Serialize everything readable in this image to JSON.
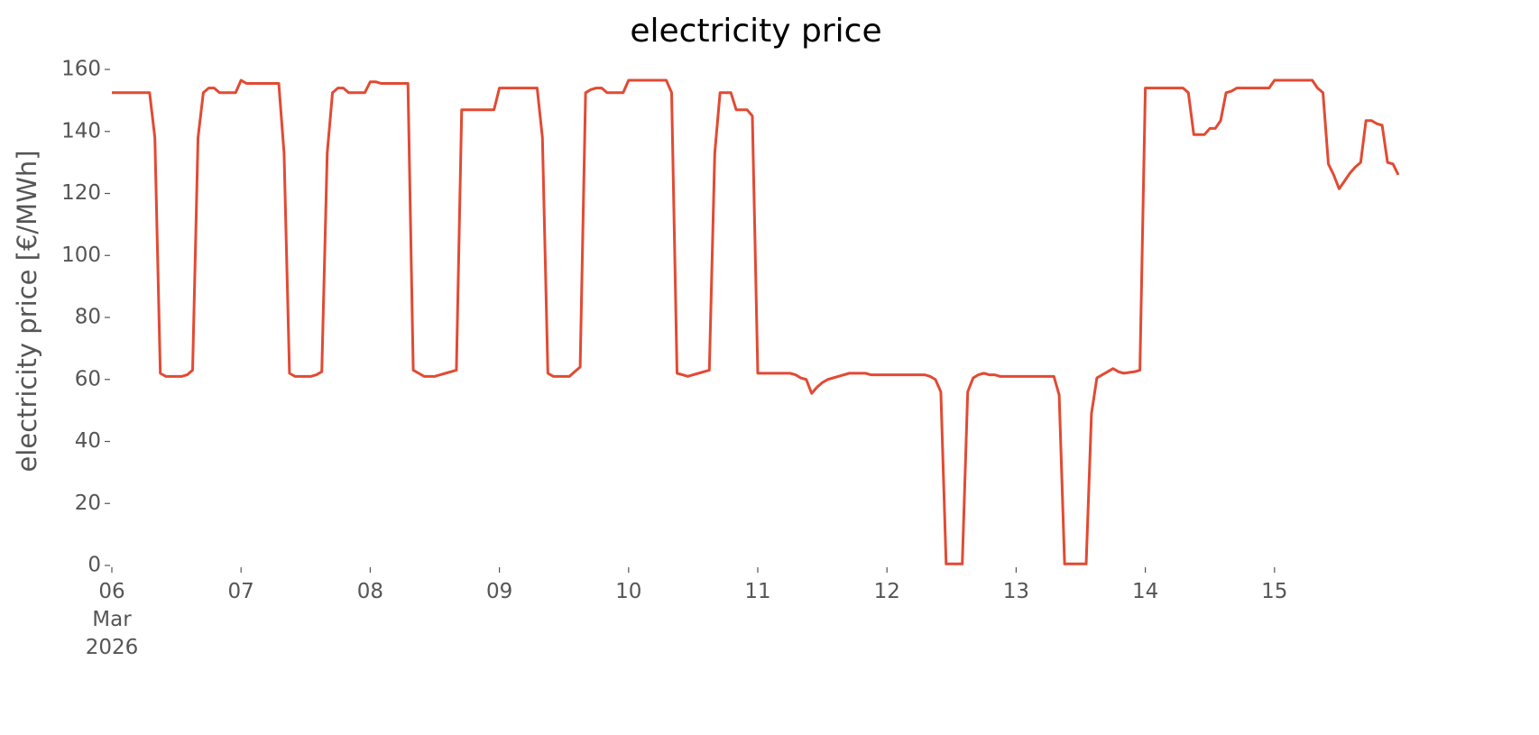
{
  "chart_data": {
    "type": "line",
    "title": "electricity price",
    "y_label": "electricity price [€/MWh]",
    "color": "#e24a33",
    "x": [
      0,
      0.292,
      0.333,
      0.375,
      0.417,
      0.542,
      0.583,
      0.625,
      0.667,
      0.708,
      0.75,
      0.792,
      0.833,
      0.958,
      1,
      1.042,
      1.292,
      1.333,
      1.375,
      1.417,
      1.542,
      1.583,
      1.625,
      1.667,
      1.708,
      1.75,
      1.792,
      1.833,
      1.958,
      2,
      2.042,
      2.083,
      2.292,
      2.333,
      2.375,
      2.417,
      2.5,
      2.542,
      2.583,
      2.625,
      2.667,
      2.708,
      2.958,
      3,
      3.292,
      3.333,
      3.375,
      3.417,
      3.542,
      3.583,
      3.625,
      3.667,
      3.708,
      3.75,
      3.792,
      3.833,
      3.958,
      4,
      4.292,
      4.333,
      4.375,
      4.417,
      4.458,
      4.5,
      4.542,
      4.583,
      4.625,
      4.667,
      4.708,
      4.792,
      4.833,
      4.917,
      4.958,
      5,
      5.25,
      5.292,
      5.333,
      5.375,
      5.417,
      5.458,
      5.5,
      5.542,
      5.625,
      5.708,
      5.833,
      5.875,
      5.958,
      6,
      6.292,
      6.333,
      6.375,
      6.417,
      6.458,
      6.583,
      6.625,
      6.667,
      6.708,
      6.75,
      6.792,
      6.833,
      6.875,
      6.958,
      7,
      7.292,
      7.333,
      7.375,
      7.542,
      7.583,
      7.625,
      7.667,
      7.708,
      7.75,
      7.792,
      7.833,
      7.917,
      7.958,
      8,
      8.292,
      8.333,
      8.375,
      8.458,
      8.5,
      8.542,
      8.583,
      8.625,
      8.667,
      8.708,
      8.958,
      9,
      9.292,
      9.333,
      9.375,
      9.417,
      9.458,
      9.5,
      9.542,
      9.583,
      9.625,
      9.667,
      9.708,
      9.75,
      9.792,
      9.833,
      9.875,
      9.917,
      9.958
    ],
    "values": [
      152.5,
      152.5,
      138,
      62,
      61,
      61,
      61.5,
      63,
      138,
      152.5,
      154,
      154,
      152.5,
      152.5,
      156.5,
      155.5,
      155.5,
      133,
      62,
      61,
      61,
      61.5,
      62.5,
      133,
      152.5,
      154,
      154,
      152.5,
      152.5,
      156,
      156,
      155.5,
      155.5,
      63,
      62,
      61,
      61,
      61.5,
      62,
      62.5,
      63,
      147,
      147,
      154,
      154,
      138,
      62,
      61,
      61,
      62.5,
      64,
      152.5,
      153.5,
      154,
      154,
      152.5,
      152.5,
      156.5,
      156.5,
      152.5,
      62,
      61.5,
      61,
      61.5,
      62,
      62.5,
      63,
      133,
      152.5,
      152.5,
      147,
      147,
      145,
      62,
      62,
      61.5,
      60.5,
      60,
      55.5,
      57.5,
      59,
      60,
      61,
      62,
      62,
      61.5,
      61.5,
      61.5,
      61.5,
      61,
      60,
      56,
      0.5,
      0.5,
      56,
      60.5,
      61.5,
      62,
      61.5,
      61.5,
      61,
      61,
      61,
      61,
      55,
      0.5,
      0.5,
      49,
      60.5,
      61.5,
      62.5,
      63.5,
      62.5,
      62,
      62.5,
      63,
      154,
      154,
      152.5,
      139,
      139,
      141,
      141,
      143.5,
      152.5,
      153,
      154,
      154,
      156.5,
      156.5,
      154,
      152.5,
      129.5,
      126,
      121.5,
      124,
      126.5,
      128.5,
      130,
      143.5,
      143.5,
      142.5,
      142,
      130,
      129.5,
      126
    ],
    "xlim": [
      0,
      9.958
    ],
    "xticks": [
      {
        "value": 0,
        "label": "06\nMar\n2026"
      },
      {
        "value": 1,
        "label": "07"
      },
      {
        "value": 2,
        "label": "08"
      },
      {
        "value": 3,
        "label": "09"
      },
      {
        "value": 4,
        "label": "10"
      },
      {
        "value": 5,
        "label": "11"
      },
      {
        "value": 6,
        "label": "12"
      },
      {
        "value": 7,
        "label": "13"
      },
      {
        "value": 8,
        "label": "14"
      },
      {
        "value": 9,
        "label": "15"
      }
    ],
    "ylim": [
      0,
      160
    ],
    "yticks": [
      0,
      20,
      40,
      60,
      80,
      100,
      120,
      140,
      160
    ]
  }
}
